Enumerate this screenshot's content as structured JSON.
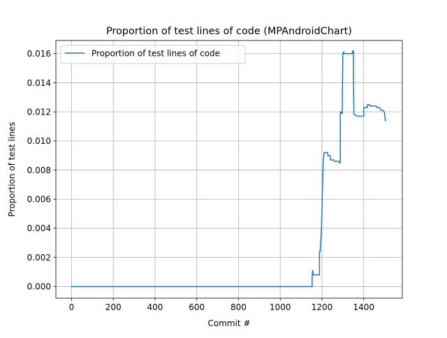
{
  "chart_data": {
    "type": "line",
    "title": "Proportion of test lines of code (MPAndroidChart)",
    "xlabel": "Commit #",
    "ylabel": "Proportion of test lines",
    "xlim": [
      -75,
      1585
    ],
    "ylim": [
      -0.0008,
      0.0169
    ],
    "xticks": [
      0,
      200,
      400,
      600,
      800,
      1000,
      1200,
      1400
    ],
    "yticks": [
      0.0,
      0.002,
      0.004,
      0.006,
      0.008,
      0.01,
      0.012,
      0.014,
      0.016
    ],
    "xtick_labels": [
      "0",
      "200",
      "400",
      "600",
      "800",
      "1000",
      "1200",
      "1400"
    ],
    "ytick_labels": [
      "0.000",
      "0.002",
      "0.004",
      "0.006",
      "0.008",
      "0.010",
      "0.012",
      "0.014",
      "0.016"
    ],
    "grid": true,
    "legend_position": "top-left",
    "series": [
      {
        "name": "Proportion of test lines of code",
        "color": "#1f77b4",
        "x": [
          0,
          1153,
          1153,
          1155,
          1156,
          1158,
          1158,
          1188,
          1188,
          1192,
          1192,
          1196,
          1198,
          1200,
          1202,
          1204,
          1206,
          1208,
          1210,
          1213,
          1216,
          1218,
          1222,
          1228,
          1228,
          1240,
          1240,
          1255,
          1260,
          1262,
          1280,
          1284,
          1288,
          1288,
          1291,
          1293,
          1293,
          1297,
          1300,
          1302,
          1302,
          1306,
          1306,
          1346,
          1346,
          1348,
          1348,
          1351,
          1351,
          1353,
          1356,
          1370,
          1400,
          1400,
          1410,
          1418,
          1418,
          1428,
          1430,
          1432,
          1460,
          1462,
          1475,
          1480,
          1484,
          1494,
          1498,
          1500,
          1502,
          1504,
          1506
        ],
        "y": [
          0.0,
          0.0,
          0.0006,
          0.0011,
          0.0011,
          0.0008,
          0.0008,
          0.0008,
          0.0024,
          0.0024,
          0.0026,
          0.0035,
          0.0042,
          0.0052,
          0.0065,
          0.0075,
          0.0085,
          0.0088,
          0.0092,
          0.0092,
          0.0092,
          0.0092,
          0.0092,
          0.0092,
          0.009,
          0.009,
          0.0087,
          0.0087,
          0.0086,
          0.0086,
          0.0086,
          0.0085,
          0.0085,
          0.012,
          0.012,
          0.0119,
          0.0119,
          0.0119,
          0.016,
          0.016,
          0.0161,
          0.0161,
          0.016,
          0.016,
          0.0161,
          0.0161,
          0.0162,
          0.0162,
          0.0138,
          0.0119,
          0.0118,
          0.0117,
          0.0117,
          0.0123,
          0.0123,
          0.0123,
          0.0125,
          0.0125,
          0.0124,
          0.0124,
          0.0124,
          0.0123,
          0.0123,
          0.0122,
          0.0121,
          0.0121,
          0.012,
          0.0119,
          0.0116,
          0.0114,
          0.0114
        ]
      }
    ]
  }
}
